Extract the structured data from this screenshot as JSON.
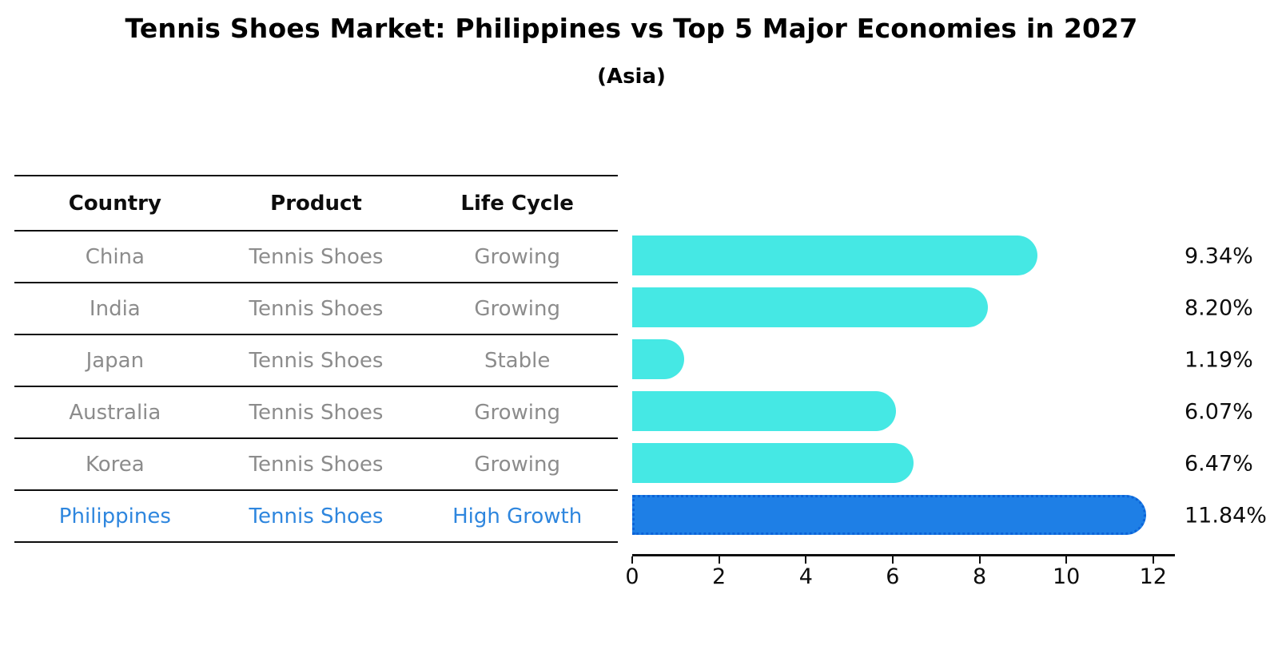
{
  "title": "Tennis Shoes Market: Philippines vs Top 5 Major Economies in 2027",
  "subtitle": "(Asia)",
  "table": {
    "headers": [
      "Country",
      "Product",
      "Life Cycle"
    ],
    "rows": [
      {
        "country": "China",
        "product": "Tennis Shoes",
        "life_cycle": "Growing",
        "highlight": false
      },
      {
        "country": "India",
        "product": "Tennis Shoes",
        "life_cycle": "Growing",
        "highlight": false
      },
      {
        "country": "Japan",
        "product": "Tennis Shoes",
        "life_cycle": "Stable",
        "highlight": false
      },
      {
        "country": "Australia",
        "product": "Tennis Shoes",
        "life_cycle": "Growing",
        "highlight": false
      },
      {
        "country": "Korea",
        "product": "Tennis Shoes",
        "life_cycle": "Growing",
        "highlight": false
      },
      {
        "country": "Philippines",
        "product": "Tennis Shoes",
        "life_cycle": "High Growth",
        "highlight": true
      }
    ]
  },
  "chart_data": {
    "type": "bar",
    "orientation": "horizontal",
    "title": "Tennis Shoes Market: Philippines vs Top 5 Major Economies in 2027",
    "subtitle": "(Asia)",
    "categories": [
      "China",
      "India",
      "Japan",
      "Australia",
      "Korea",
      "Philippines"
    ],
    "values": [
      9.34,
      8.2,
      1.19,
      6.07,
      6.47,
      11.84
    ],
    "value_labels": [
      "9.34%",
      "8.20%",
      "1.19%",
      "6.07%",
      "6.47%",
      "11.84%"
    ],
    "xlim": [
      0,
      12.5
    ],
    "xticks": [
      0,
      2,
      4,
      6,
      8,
      10,
      12
    ],
    "grid": false,
    "legend": "none",
    "bar_color": "#45E8E4",
    "highlight_index": 5,
    "highlight_color": "#1E7FE6",
    "highlight_border_color": "#0B63D8",
    "highlight_text_color": "#2E86DE",
    "muted_text_color": "#8C8C8C",
    "axis_color": "#0D0D0D"
  }
}
